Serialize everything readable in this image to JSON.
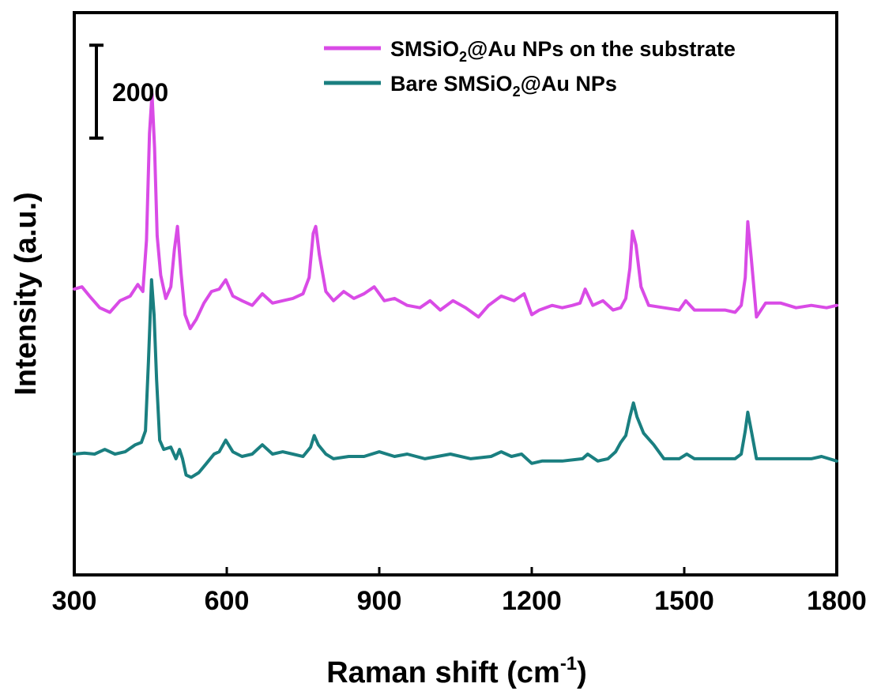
{
  "chart_data": {
    "type": "line",
    "xlabel": "Raman shift (cm",
    "xlabel_sup": "-1",
    "xlabel_tail": ")",
    "ylabel": "Intensity (a.u.)",
    "xlim": [
      300,
      1800
    ],
    "ylim": [
      -1000,
      11100
    ],
    "x_ticks": [
      300,
      600,
      900,
      1200,
      1500,
      1800
    ],
    "x_tick_labels": [
      "300",
      "600",
      "900",
      "1200",
      "1500",
      "1800"
    ],
    "y_ticks_shown": false,
    "grid": false,
    "legend_position": "top-right",
    "scale_bar": {
      "label": "2000",
      "value": 2000,
      "top": 10400
    },
    "series": [
      {
        "name_parts": [
          "SMSiO",
          "2",
          "@Au NPs on the substrate"
        ],
        "color": "#d94be6",
        "x": [
          300,
          315,
          330,
          350,
          370,
          390,
          410,
          425,
          435,
          442,
          448,
          453,
          458,
          463,
          470,
          480,
          490,
          497,
          503,
          510,
          518,
          528,
          540,
          555,
          570,
          585,
          598,
          612,
          630,
          650,
          670,
          690,
          710,
          730,
          750,
          762,
          770,
          775,
          782,
          795,
          810,
          830,
          850,
          870,
          890,
          910,
          930,
          955,
          980,
          1000,
          1020,
          1045,
          1070,
          1095,
          1115,
          1140,
          1165,
          1185,
          1200,
          1215,
          1240,
          1260,
          1280,
          1295,
          1305,
          1320,
          1340,
          1360,
          1375,
          1385,
          1393,
          1398,
          1405,
          1415,
          1430,
          1460,
          1490,
          1503,
          1520,
          1550,
          1580,
          1600,
          1612,
          1620,
          1625,
          1632,
          1642,
          1660,
          1690,
          1720,
          1750,
          1780,
          1800
        ],
        "y": [
          5150,
          5200,
          5000,
          4750,
          4650,
          4900,
          5000,
          5250,
          5100,
          6200,
          8500,
          9350,
          8200,
          6300,
          5450,
          4950,
          5200,
          6000,
          6500,
          5500,
          4600,
          4300,
          4500,
          4850,
          5100,
          5150,
          5350,
          5000,
          4900,
          4800,
          5050,
          4850,
          4900,
          4950,
          5050,
          5400,
          6350,
          6500,
          5900,
          5100,
          4900,
          5100,
          4950,
          5050,
          5200,
          4900,
          4950,
          4800,
          4750,
          4900,
          4700,
          4900,
          4750,
          4550,
          4800,
          5000,
          4900,
          5050,
          4600,
          4700,
          4800,
          4750,
          4800,
          4850,
          5150,
          4800,
          4900,
          4700,
          4750,
          4950,
          5600,
          6400,
          6100,
          5200,
          4800,
          4750,
          4700,
          4900,
          4700,
          4700,
          4700,
          4650,
          4800,
          5400,
          6600,
          5800,
          4550,
          4850,
          4850,
          4750,
          4800,
          4750,
          4800
        ]
      },
      {
        "name_parts": [
          "Bare SMSiO",
          "2",
          "@Au NPs"
        ],
        "color": "#1a7f80",
        "x": [
          300,
          320,
          340,
          360,
          380,
          400,
          420,
          432,
          440,
          446,
          452,
          457,
          462,
          468,
          476,
          490,
          500,
          507,
          513,
          520,
          530,
          545,
          560,
          575,
          585,
          598,
          612,
          630,
          650,
          670,
          690,
          710,
          730,
          750,
          765,
          772,
          780,
          795,
          810,
          840,
          870,
          900,
          930,
          955,
          990,
          1040,
          1080,
          1120,
          1140,
          1160,
          1180,
          1200,
          1220,
          1260,
          1300,
          1310,
          1330,
          1350,
          1365,
          1375,
          1385,
          1393,
          1400,
          1407,
          1420,
          1440,
          1460,
          1490,
          1505,
          1520,
          1550,
          1580,
          1600,
          1612,
          1620,
          1625,
          1632,
          1642,
          1660,
          1690,
          1720,
          1750,
          1770,
          1800
        ],
        "y": [
          1600,
          1620,
          1600,
          1700,
          1600,
          1650,
          1800,
          1850,
          2100,
          3600,
          5350,
          4600,
          3200,
          1900,
          1700,
          1750,
          1500,
          1700,
          1500,
          1150,
          1100,
          1200,
          1400,
          1600,
          1650,
          1900,
          1650,
          1550,
          1600,
          1800,
          1600,
          1650,
          1600,
          1550,
          1750,
          2000,
          1800,
          1600,
          1500,
          1550,
          1550,
          1650,
          1550,
          1600,
          1500,
          1600,
          1500,
          1550,
          1650,
          1550,
          1600,
          1400,
          1450,
          1450,
          1500,
          1600,
          1450,
          1500,
          1650,
          1850,
          2000,
          2400,
          2700,
          2400,
          2050,
          1800,
          1500,
          1500,
          1600,
          1500,
          1500,
          1500,
          1500,
          1600,
          2100,
          2500,
          2100,
          1500,
          1500,
          1500,
          1500,
          1500,
          1550,
          1450
        ]
      }
    ]
  }
}
